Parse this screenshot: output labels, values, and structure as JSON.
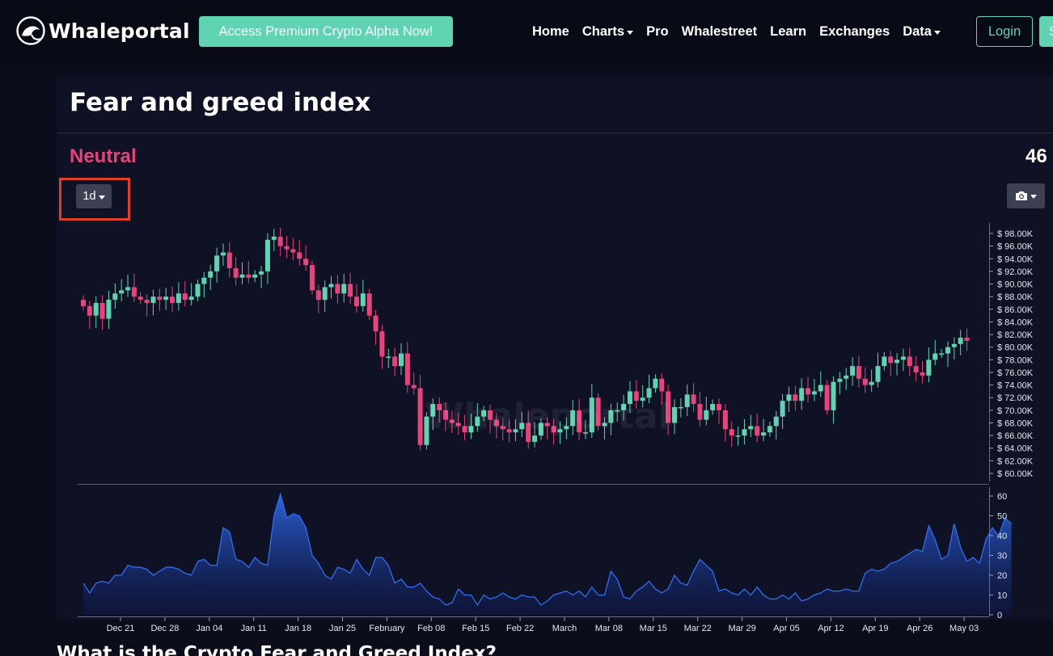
{
  "brand": {
    "name": "Whaleportal",
    "logo_icon": "whale-icon"
  },
  "navbar": {
    "promo_label": "Access Premium Crypto Alpha Now!",
    "links": [
      {
        "label": "Home",
        "dropdown": false
      },
      {
        "label": "Charts",
        "dropdown": true
      },
      {
        "label": "Pro",
        "dropdown": false
      },
      {
        "label": "Whalestreet",
        "dropdown": false
      },
      {
        "label": "Learn",
        "dropdown": false
      },
      {
        "label": "Exchanges",
        "dropdown": false
      },
      {
        "label": "Data",
        "dropdown": true
      }
    ],
    "login_label": "Login",
    "signup_label": "S"
  },
  "page": {
    "title": "Fear and greed index",
    "sentiment": "Neutral",
    "index_value": "46",
    "timeframe": "1d",
    "camera_icon": "camera-icon",
    "watermark": "Whaleportal",
    "faq_heading": "What is the Crypto Fear and Greed Index?"
  },
  "colors": {
    "accent": "#5fd3b2",
    "up_candle": "#5fd3b2",
    "down_candle": "#e8437a",
    "neutral_label": "#e8437a",
    "highlight_box": "#e0402a",
    "area_line": "#2f6df0"
  },
  "chart_data": [
    {
      "type": "candlestick",
      "title": "",
      "y_tick_labels": [
        "$ 98.00K",
        "$ 96.00K",
        "$ 94.00K",
        "$ 92.00K",
        "$ 90.00K",
        "$ 88.00K",
        "$ 86.00K",
        "$ 84.00K",
        "$ 82.00K",
        "$ 80.00K",
        "$ 78.00K",
        "$ 76.00K",
        "$ 74.00K",
        "$ 72.00K",
        "$ 70.00K",
        "$ 68.00K",
        "$ 66.00K",
        "$ 64.00K",
        "$ 62.00K",
        "$ 60.00K"
      ],
      "ylim": [
        59000,
        99500
      ],
      "x_tick_labels": [
        "Dec 21",
        "Dec 28",
        "Jan 04",
        "Jan 11",
        "Jan 18",
        "Jan 25",
        "February",
        "Feb 08",
        "Feb 15",
        "Feb 22",
        "March",
        "Mar 08",
        "Mar 15",
        "Mar 22",
        "Mar 29",
        "Apr 05",
        "Apr 12",
        "Apr 19",
        "Apr 26",
        "May 03"
      ],
      "close": [
        86500,
        85000,
        87000,
        84500,
        87500,
        88500,
        89000,
        89500,
        88000,
        87500,
        87000,
        88000,
        87500,
        88000,
        87000,
        88500,
        87500,
        88000,
        90000,
        91000,
        92000,
        94500,
        95000,
        92500,
        91000,
        91500,
        91000,
        91500,
        92000,
        97000,
        97500,
        96000,
        95500,
        95000,
        94000,
        93000,
        89000,
        87500,
        89500,
        90000,
        88500,
        90000,
        88000,
        86500,
        88500,
        85000,
        82500,
        78500,
        78500,
        77000,
        79000,
        74000,
        73500,
        64500,
        69000,
        71000,
        70000,
        68500,
        68000,
        67500,
        66500,
        67500,
        69000,
        70000,
        68500,
        67500,
        67000,
        66500,
        67000,
        68000,
        65000,
        66000,
        68000,
        67500,
        66500,
        67000,
        67500,
        70000,
        66500,
        66500,
        72000,
        67500,
        68000,
        70000,
        70000,
        71000,
        73000,
        71500,
        72000,
        73500,
        75000,
        73000,
        68000,
        70500,
        70500,
        72500,
        71000,
        68500,
        70000,
        71000,
        70000,
        67000,
        66000,
        66000,
        67000,
        67500,
        66000,
        66500,
        67500,
        69000,
        71500,
        72500,
        71500,
        73500,
        72500,
        73000,
        74000,
        70000,
        74500,
        75000,
        75500,
        77000,
        75000,
        74000,
        74500,
        77000,
        78500,
        77500,
        78000,
        78500,
        77000,
        76000,
        75500,
        78000,
        79000,
        79000,
        80000,
        80500,
        81500,
        81000
      ]
    },
    {
      "type": "area",
      "y_tick_labels": [
        "60",
        "50",
        "40",
        "30",
        "20",
        "10",
        "0"
      ],
      "ylim": [
        0,
        60
      ],
      "values": [
        16,
        11,
        16,
        17,
        16,
        20,
        20,
        25,
        24,
        24,
        23,
        20,
        22,
        24,
        24,
        23,
        21,
        20,
        27,
        28,
        25,
        25,
        44,
        42,
        28,
        27,
        24,
        29,
        26,
        25,
        50,
        61,
        49,
        51,
        50,
        44,
        30,
        26,
        20,
        18,
        24,
        23,
        21,
        28,
        23,
        20,
        29,
        29,
        25,
        16,
        18,
        14,
        14,
        16,
        12,
        9,
        8,
        5,
        6,
        13,
        10,
        10,
        5,
        10,
        8,
        9,
        11,
        9,
        8,
        10,
        9,
        9,
        5,
        7,
        10,
        11,
        12,
        10,
        12,
        9,
        14,
        10,
        10,
        22,
        18,
        9,
        8,
        12,
        14,
        17,
        13,
        11,
        13,
        20,
        16,
        15,
        22,
        28,
        25,
        22,
        12,
        13,
        11,
        10,
        13,
        10,
        14,
        10,
        8,
        8,
        10,
        8,
        11,
        7,
        8,
        10,
        11,
        13,
        12,
        12,
        13,
        12,
        12,
        21,
        23,
        22,
        23,
        26,
        27,
        29,
        31,
        33,
        32,
        45,
        38,
        28,
        30,
        46,
        34,
        27,
        29,
        26,
        38,
        44,
        40,
        49,
        46
      ]
    }
  ]
}
